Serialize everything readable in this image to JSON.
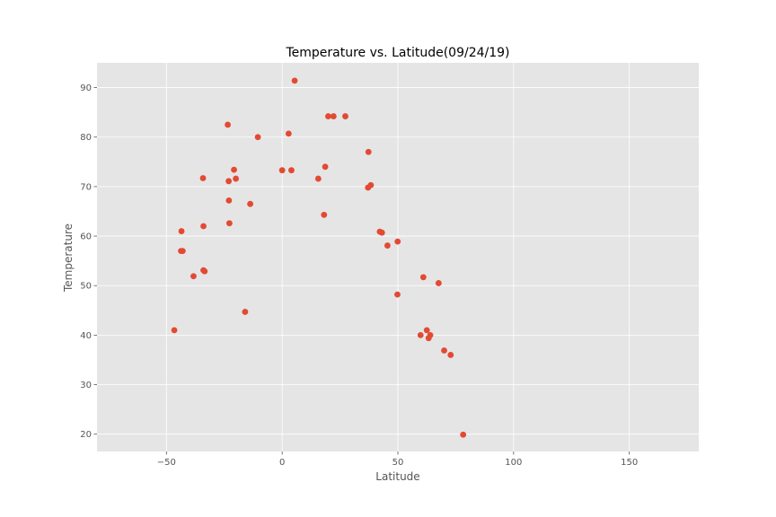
{
  "chart_data": {
    "type": "scatter",
    "title": "Temperature vs. Latitude(09/24/19)",
    "xlabel": "Latitude",
    "ylabel": "Temperature",
    "xlim": [
      -80,
      180
    ],
    "ylim": [
      16.5,
      95
    ],
    "xticks": [
      -50,
      0,
      50,
      100,
      150
    ],
    "yticks": [
      20,
      30,
      40,
      50,
      60,
      70,
      80,
      90
    ],
    "grid": true,
    "colors": {
      "background": "#e5e5e5",
      "grid": "#ffffff",
      "marker": "#e24a33"
    },
    "series": [
      {
        "x": [
          5.4,
          19.9,
          22.2,
          27.3,
          2.8,
          -23.5,
          -10.5,
          37.3,
          18.6,
          -20.8,
          0.0,
          4.0,
          15.6,
          -34.2,
          -20.0,
          -23.1,
          37.1,
          38.3,
          -23.0,
          -13.8,
          -22.8,
          18.1,
          -34.0,
          42.2,
          43.1,
          -43.5,
          45.5,
          49.9,
          -43.0,
          -43.7,
          -34.0,
          -33.5,
          -38.3,
          61.0,
          67.6,
          49.8,
          -16.0,
          -46.6,
          62.5,
          59.8,
          64.0,
          63.3,
          70.0,
          72.8,
          78.2
        ],
        "y": [
          91.4,
          84.2,
          84.2,
          84.2,
          80.7,
          82.5,
          80.0,
          77.0,
          74.0,
          73.4,
          73.3,
          73.3,
          71.6,
          71.7,
          71.6,
          71.1,
          69.8,
          70.3,
          67.2,
          66.5,
          62.6,
          64.3,
          62.0,
          60.9,
          60.7,
          61.0,
          58.1,
          58.9,
          57.0,
          57.0,
          53.1,
          52.9,
          51.9,
          51.7,
          50.5,
          48.2,
          44.7,
          41.0,
          41.0,
          40.0,
          40.0,
          39.4,
          36.9,
          36.0,
          19.9
        ]
      }
    ]
  }
}
